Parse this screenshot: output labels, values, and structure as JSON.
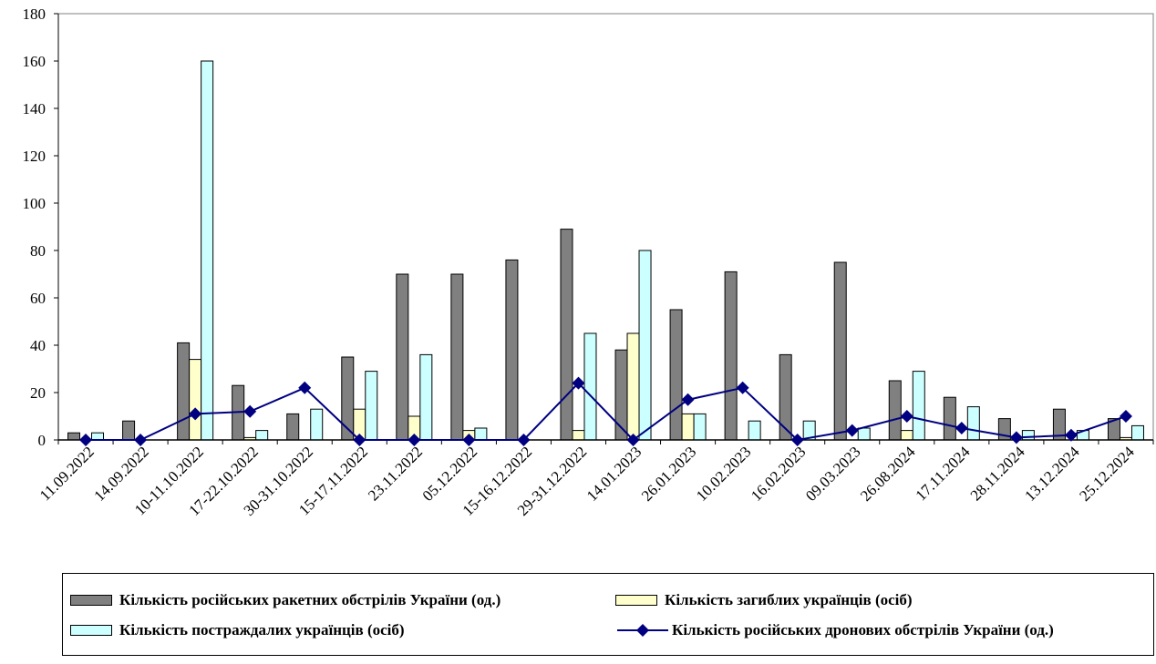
{
  "chart_data": {
    "type": "bar",
    "categories": [
      "11.09.2022",
      "14.09.2022",
      "10-11.10.2022",
      "17-22.10.2022",
      "30-31.10.2022",
      "15-17.11.2022",
      "23.11.2022",
      "05.12.2022",
      "15-16.12.2022",
      "29-31.12.2022",
      "14.01.2023",
      "26.01.2023",
      "10.02.2023",
      "16.02.2023",
      "09.03.2023",
      "26.08.2024",
      "17.11.2024",
      "28.11.2024",
      "13.12.2024",
      "25.12.2024"
    ],
    "ylim": [
      0,
      180
    ],
    "yticks": [
      0,
      20,
      40,
      60,
      80,
      100,
      120,
      140,
      160,
      180
    ],
    "grid": false,
    "legend_position": "bottom",
    "series": [
      {
        "name": "Кількість російських ракетних обстрілів України (од.)",
        "kind": "bar",
        "color": "#808080",
        "values": [
          3,
          8,
          41,
          23,
          11,
          35,
          70,
          70,
          76,
          89,
          38,
          55,
          71,
          36,
          75,
          25,
          18,
          9,
          13,
          9
        ]
      },
      {
        "name": "Кількість загиблих українців (осіб)",
        "kind": "bar",
        "color": "#ffffcc",
        "values": [
          0,
          0,
          34,
          1,
          0,
          13,
          10,
          4,
          0,
          4,
          45,
          11,
          0,
          0,
          0,
          4,
          0,
          0,
          0,
          1
        ]
      },
      {
        "name": "Кількість постраждалих українців (осіб)",
        "kind": "bar",
        "color": "#ccffff",
        "values": [
          3,
          0,
          160,
          4,
          13,
          29,
          36,
          5,
          0,
          45,
          80,
          11,
          8,
          8,
          5,
          29,
          14,
          4,
          4,
          6
        ]
      },
      {
        "name": "Кількість російських дронових обстрілів України (од.)",
        "kind": "line",
        "color": "#000080",
        "values": [
          0,
          0,
          11,
          12,
          22,
          0,
          0,
          0,
          0,
          24,
          0,
          17,
          22,
          0,
          4,
          10,
          5,
          1,
          2,
          10
        ]
      }
    ]
  },
  "legend": {
    "items": [
      {
        "label": "Кількість російських ракетних обстрілів України (од.)"
      },
      {
        "label": "Кількість загиблих українців (осіб)"
      },
      {
        "label": "Кількість постраждалих українців (осіб)"
      },
      {
        "label": "Кількість російських дронових обстрілів України (од.)"
      }
    ]
  }
}
